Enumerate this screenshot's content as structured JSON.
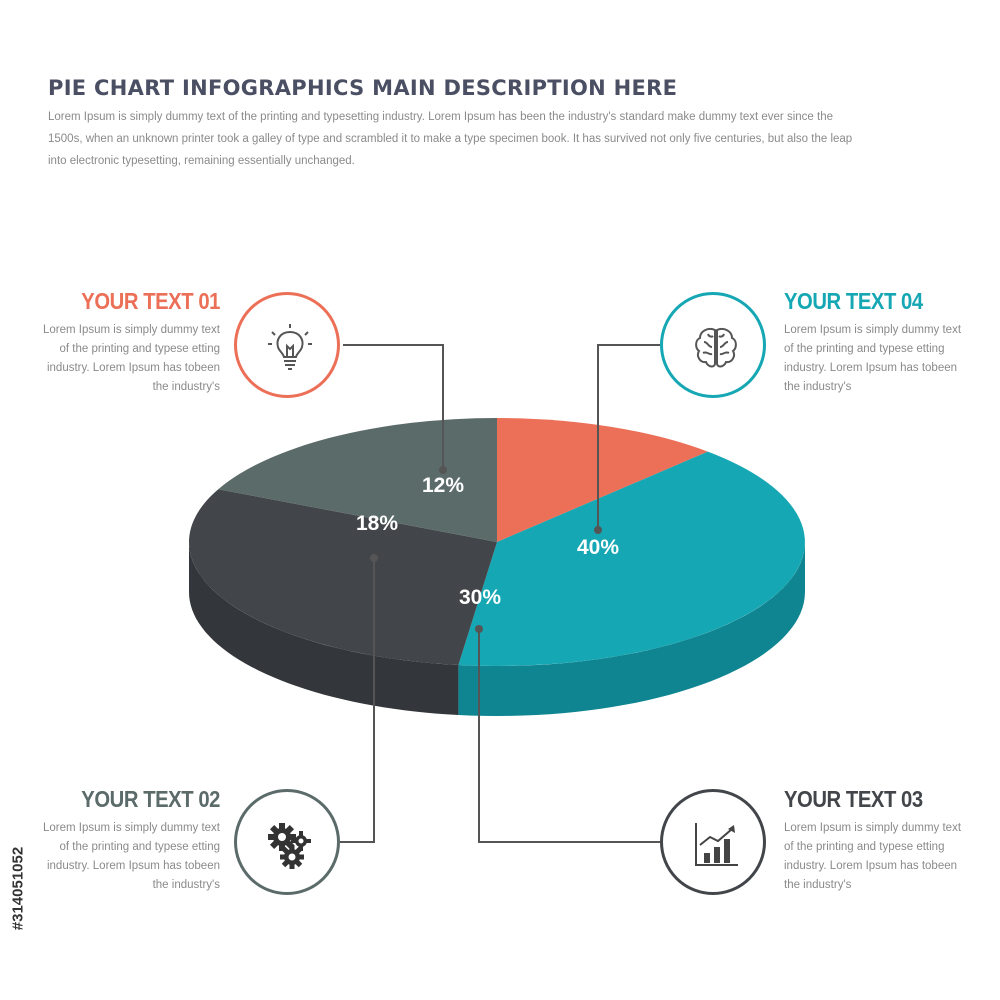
{
  "header": {
    "title": "PIE CHART INFOGRAPHICS MAIN DESCRIPTION HERE",
    "description": "Lorem Ipsum is simply dummy text of the printing and typesetting industry. Lorem Ipsum has been the industry's standard make dummy text ever since the 1500s, when an unknown printer took  a galley of type and scrambled it to make a type specimen book. It has survived not only five centuries, but also the leap into electronic typesetting, remaining essentially unchanged."
  },
  "chart_data": {
    "type": "pie",
    "style": "3d",
    "slices": [
      {
        "label": "12%",
        "value": 12,
        "color": "#ec6f57",
        "side_color": "#c65a46"
      },
      {
        "label": "40%",
        "value": 40,
        "color": "#15a7b3",
        "side_color": "#0e8591"
      },
      {
        "label": "30%",
        "value": 30,
        "color": "#424549",
        "side_color": "#33363a"
      },
      {
        "label": "18%",
        "value": 18,
        "color": "#5b6b6a",
        "side_color": "#3f4242"
      }
    ]
  },
  "items": [
    {
      "title": "YOUR TEXT 01",
      "body": "Lorem Ipsum is simply dummy text of the printing and typese etting industry. Lorem Ipsum has tobeen the industry's",
      "color": "#ec6f57",
      "icon": "lightbulb-icon"
    },
    {
      "title": "YOUR TEXT 02",
      "body": "Lorem Ipsum is simply dummy text of the printing and typese etting industry. Lorem Ipsum has tobeen the industry's",
      "color": "#5b6b6a",
      "icon": "gears-icon"
    },
    {
      "title": "YOUR TEXT 03",
      "body": "Lorem Ipsum is simply dummy text of the printing and typese etting industry. Lorem Ipsum has tobeen the industry's",
      "color": "#424549",
      "icon": "growth-chart-icon"
    },
    {
      "title": "YOUR TEXT 04",
      "body": "Lorem Ipsum is simply dummy text of the printing and typese etting industry. Lorem Ipsum has tobeen the industry's",
      "color": "#15a7b3",
      "icon": "brain-icon"
    }
  ],
  "watermark": "#314051052"
}
